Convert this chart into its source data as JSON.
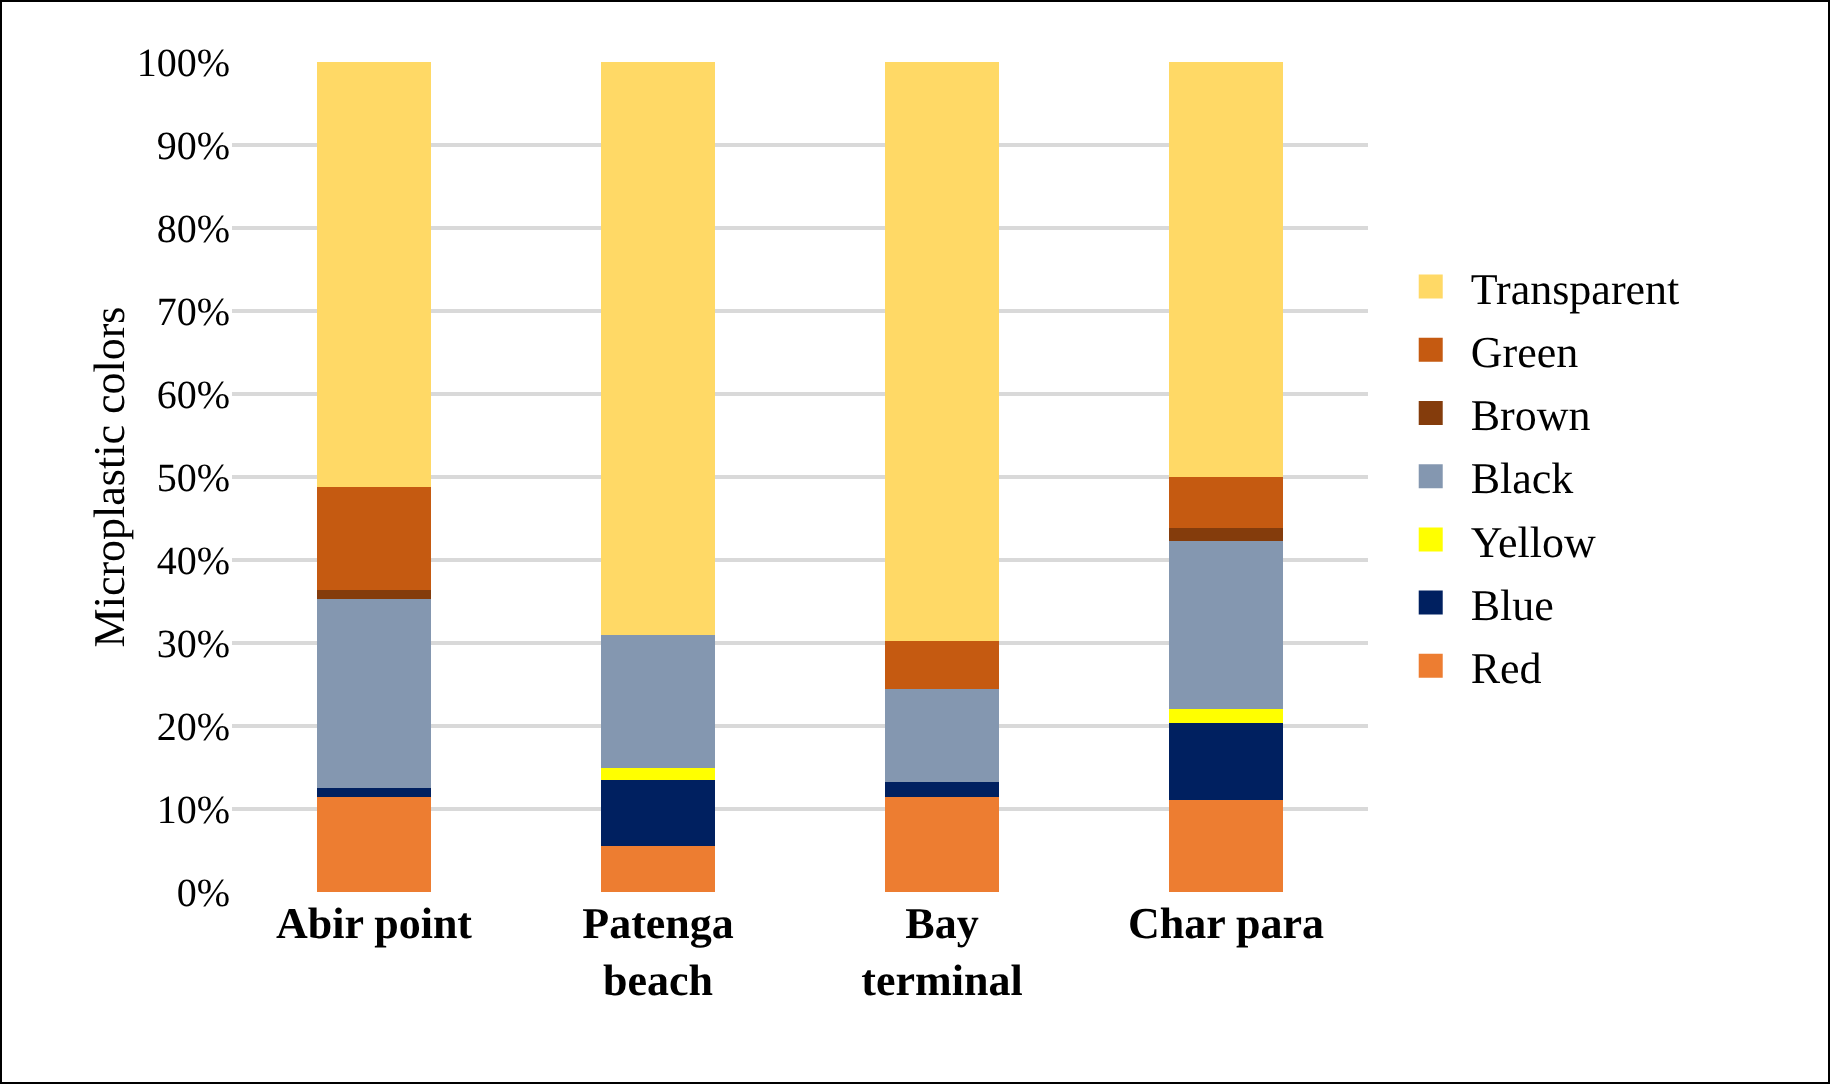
{
  "chart_data": {
    "type": "bar",
    "stacked": true,
    "ylabel": "Microplastic colors",
    "categories": [
      "Abir point",
      "Patenga beach",
      "Bay terminal",
      "Char para"
    ],
    "series": [
      {
        "name": "Red",
        "color": "#ed7d31",
        "values": [
          11.4,
          5.5,
          11.4,
          11.1
        ]
      },
      {
        "name": "Blue",
        "color": "#002060",
        "values": [
          1.1,
          8.0,
          1.8,
          9.3
        ]
      },
      {
        "name": "Yellow",
        "color": "#ffff00",
        "values": [
          0,
          1.5,
          0,
          1.7
        ]
      },
      {
        "name": "Black",
        "color": "#8497b0",
        "values": [
          22.8,
          16.0,
          11.3,
          20.2
        ]
      },
      {
        "name": "Brown",
        "color": "#843c0c",
        "values": [
          1.1,
          0,
          0,
          1.6
        ]
      },
      {
        "name": "Green",
        "color": "#c55a11",
        "values": [
          12.4,
          0,
          5.8,
          6.1
        ]
      },
      {
        "name": "Transparent",
        "color": "#ffd966",
        "values": [
          51.2,
          69.0,
          69.7,
          50.0
        ]
      }
    ],
    "ylim": [
      0,
      100
    ],
    "yticks": [
      {
        "value": 0,
        "label": "0%"
      },
      {
        "value": 10,
        "label": "10%"
      },
      {
        "value": 20,
        "label": "20%"
      },
      {
        "value": 30,
        "label": "30%"
      },
      {
        "value": 40,
        "label": "40%"
      },
      {
        "value": 50,
        "label": "50%"
      },
      {
        "value": 60,
        "label": "60%"
      },
      {
        "value": 70,
        "label": "70%"
      },
      {
        "value": 80,
        "label": "80%"
      },
      {
        "value": 90,
        "label": "90%"
      },
      {
        "value": 100,
        "label": "100%"
      }
    ],
    "grid": "y",
    "legend": "right"
  }
}
